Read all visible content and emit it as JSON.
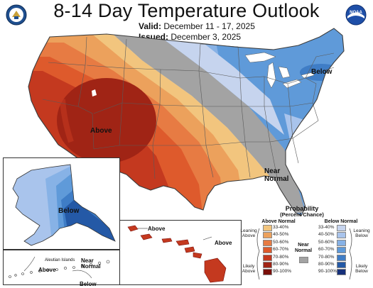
{
  "header": {
    "title": "8-14 Day Temperature Outlook",
    "valid_label": "Valid:",
    "valid_value": "December 11 - 17, 2025",
    "issued_label": "Issued:",
    "issued_value": "December 3, 2025"
  },
  "logos": {
    "left": {
      "icon": "doc-seal-icon",
      "color": "#1f4f8f"
    },
    "right": {
      "icon": "noaa-logo-icon",
      "text": "NOAA",
      "color": "#1e4fa8"
    }
  },
  "map_labels": {
    "conus_above": "Above",
    "conus_below": "Below",
    "conus_near_normal": "Near Normal",
    "alaska_below": "Below",
    "aleutian_title": "Aleutian Islands",
    "aleutian_above": "Above",
    "aleutian_below": "Below",
    "aleutian_near_normal": "Near Normal",
    "hawaii_above_1": "Above",
    "hawaii_above_2": "Above"
  },
  "legend": {
    "title": "Probability",
    "subtitle": "(Percent Chance)",
    "above_header": "Above Normal",
    "below_header": "Below Normal",
    "near_header": "Near Normal",
    "leaning_above": "Leaning Above",
    "likely_above": "Likely Above",
    "leaning_below": "Leaning Below",
    "likely_below": "Likely Below",
    "ranges": [
      "33-40%",
      "40-50%",
      "50-60%",
      "60-70%",
      "70-80%",
      "80-90%",
      "90-100%"
    ],
    "above_colors": [
      "#f2c57e",
      "#eca15c",
      "#e77b43",
      "#de5a2c",
      "#c4391f",
      "#a02415",
      "#7a0f0a"
    ],
    "below_colors": [
      "#c6d4ee",
      "#a9c4ec",
      "#87b2e6",
      "#5f9ad9",
      "#3f7dc6",
      "#2459a6",
      "#16307a"
    ],
    "near_color": "#a3a3a3"
  },
  "colors": {
    "background": "#ffffff",
    "border": "#444444",
    "state_line": "#5a5a5a"
  }
}
